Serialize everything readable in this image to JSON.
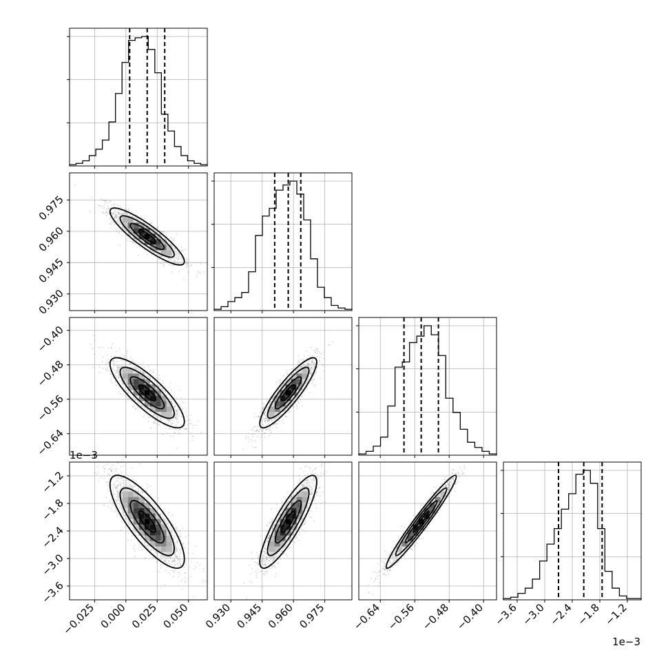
{
  "chart_data": {
    "type": "corner",
    "grid": true,
    "colors": {
      "hist": "#000000",
      "points": "#888888",
      "contour": "#000000",
      "grid": "#b0b0b0"
    },
    "parameters": [
      {
        "range": [
          -0.045,
          0.065
        ],
        "ticks": [
          -0.025,
          0.0,
          0.025,
          0.05
        ],
        "tick_labels": [
          "−0.025",
          "0.000",
          "0.025",
          "0.050"
        ],
        "offset": "",
        "quantiles": [
          0.003,
          0.017,
          0.031
        ],
        "mean": 0.017,
        "sd": 0.0135
      },
      {
        "range": [
          0.922,
          0.988
        ],
        "ticks": [
          0.93,
          0.945,
          0.96,
          0.975
        ],
        "tick_labels": [
          "0.930",
          "0.945",
          "0.960",
          "0.975"
        ],
        "offset": "",
        "quantiles": [
          0.951,
          0.9575,
          0.9635
        ],
        "mean": 0.9575,
        "sd": 0.0062
      },
      {
        "range": [
          -0.69,
          -0.37
        ],
        "ticks": [
          -0.64,
          -0.56,
          -0.48,
          -0.4
        ],
        "tick_labels": [
          "−0.64",
          "−0.56",
          "−0.48",
          "−0.40"
        ],
        "offset": "",
        "quantiles": [
          -0.585,
          -0.545,
          -0.505
        ],
        "mean": -0.545,
        "sd": 0.037
      },
      {
        "range": [
          -3.9,
          -0.9
        ],
        "ticks": [
          -3.6,
          -3.0,
          -2.4,
          -1.8,
          -1.2
        ],
        "tick_labels": [
          "−3.6",
          "−3.0",
          "−2.4",
          "−1.8",
          "−1.2"
        ],
        "offset": "1e−3",
        "quantiles": [
          -2.7,
          -2.15,
          -1.75
        ],
        "mean": -2.2,
        "sd": 0.46
      }
    ],
    "correlations": {
      "1-0": -0.88,
      "2-0": -0.82,
      "2-1": 0.88,
      "3-0": -0.8,
      "3-1": 0.86,
      "3-2": 0.97
    },
    "histograms": [
      [
        0.01,
        0.02,
        0.04,
        0.08,
        0.13,
        0.2,
        0.34,
        0.56,
        0.8,
        0.97,
        0.99,
        1.0,
        0.9,
        0.72,
        0.4,
        0.27,
        0.15,
        0.08,
        0.04,
        0.02,
        0.01
      ],
      [
        0.01,
        0.03,
        0.07,
        0.1,
        0.14,
        0.3,
        0.58,
        0.73,
        0.79,
        0.93,
        0.97,
        1.0,
        0.9,
        0.7,
        0.4,
        0.18,
        0.1,
        0.04,
        0.02,
        0.01
      ],
      [
        0.01,
        0.03,
        0.07,
        0.14,
        0.38,
        0.68,
        0.72,
        0.87,
        0.92,
        1.0,
        0.93,
        0.77,
        0.44,
        0.33,
        0.2,
        0.1,
        0.06,
        0.03,
        0.01
      ],
      [
        0.01,
        0.02,
        0.05,
        0.09,
        0.16,
        0.3,
        0.43,
        0.55,
        0.7,
        0.82,
        0.97,
        1.0,
        0.9,
        0.55,
        0.22,
        0.09,
        0.03,
        0.01,
        0.01
      ]
    ]
  }
}
